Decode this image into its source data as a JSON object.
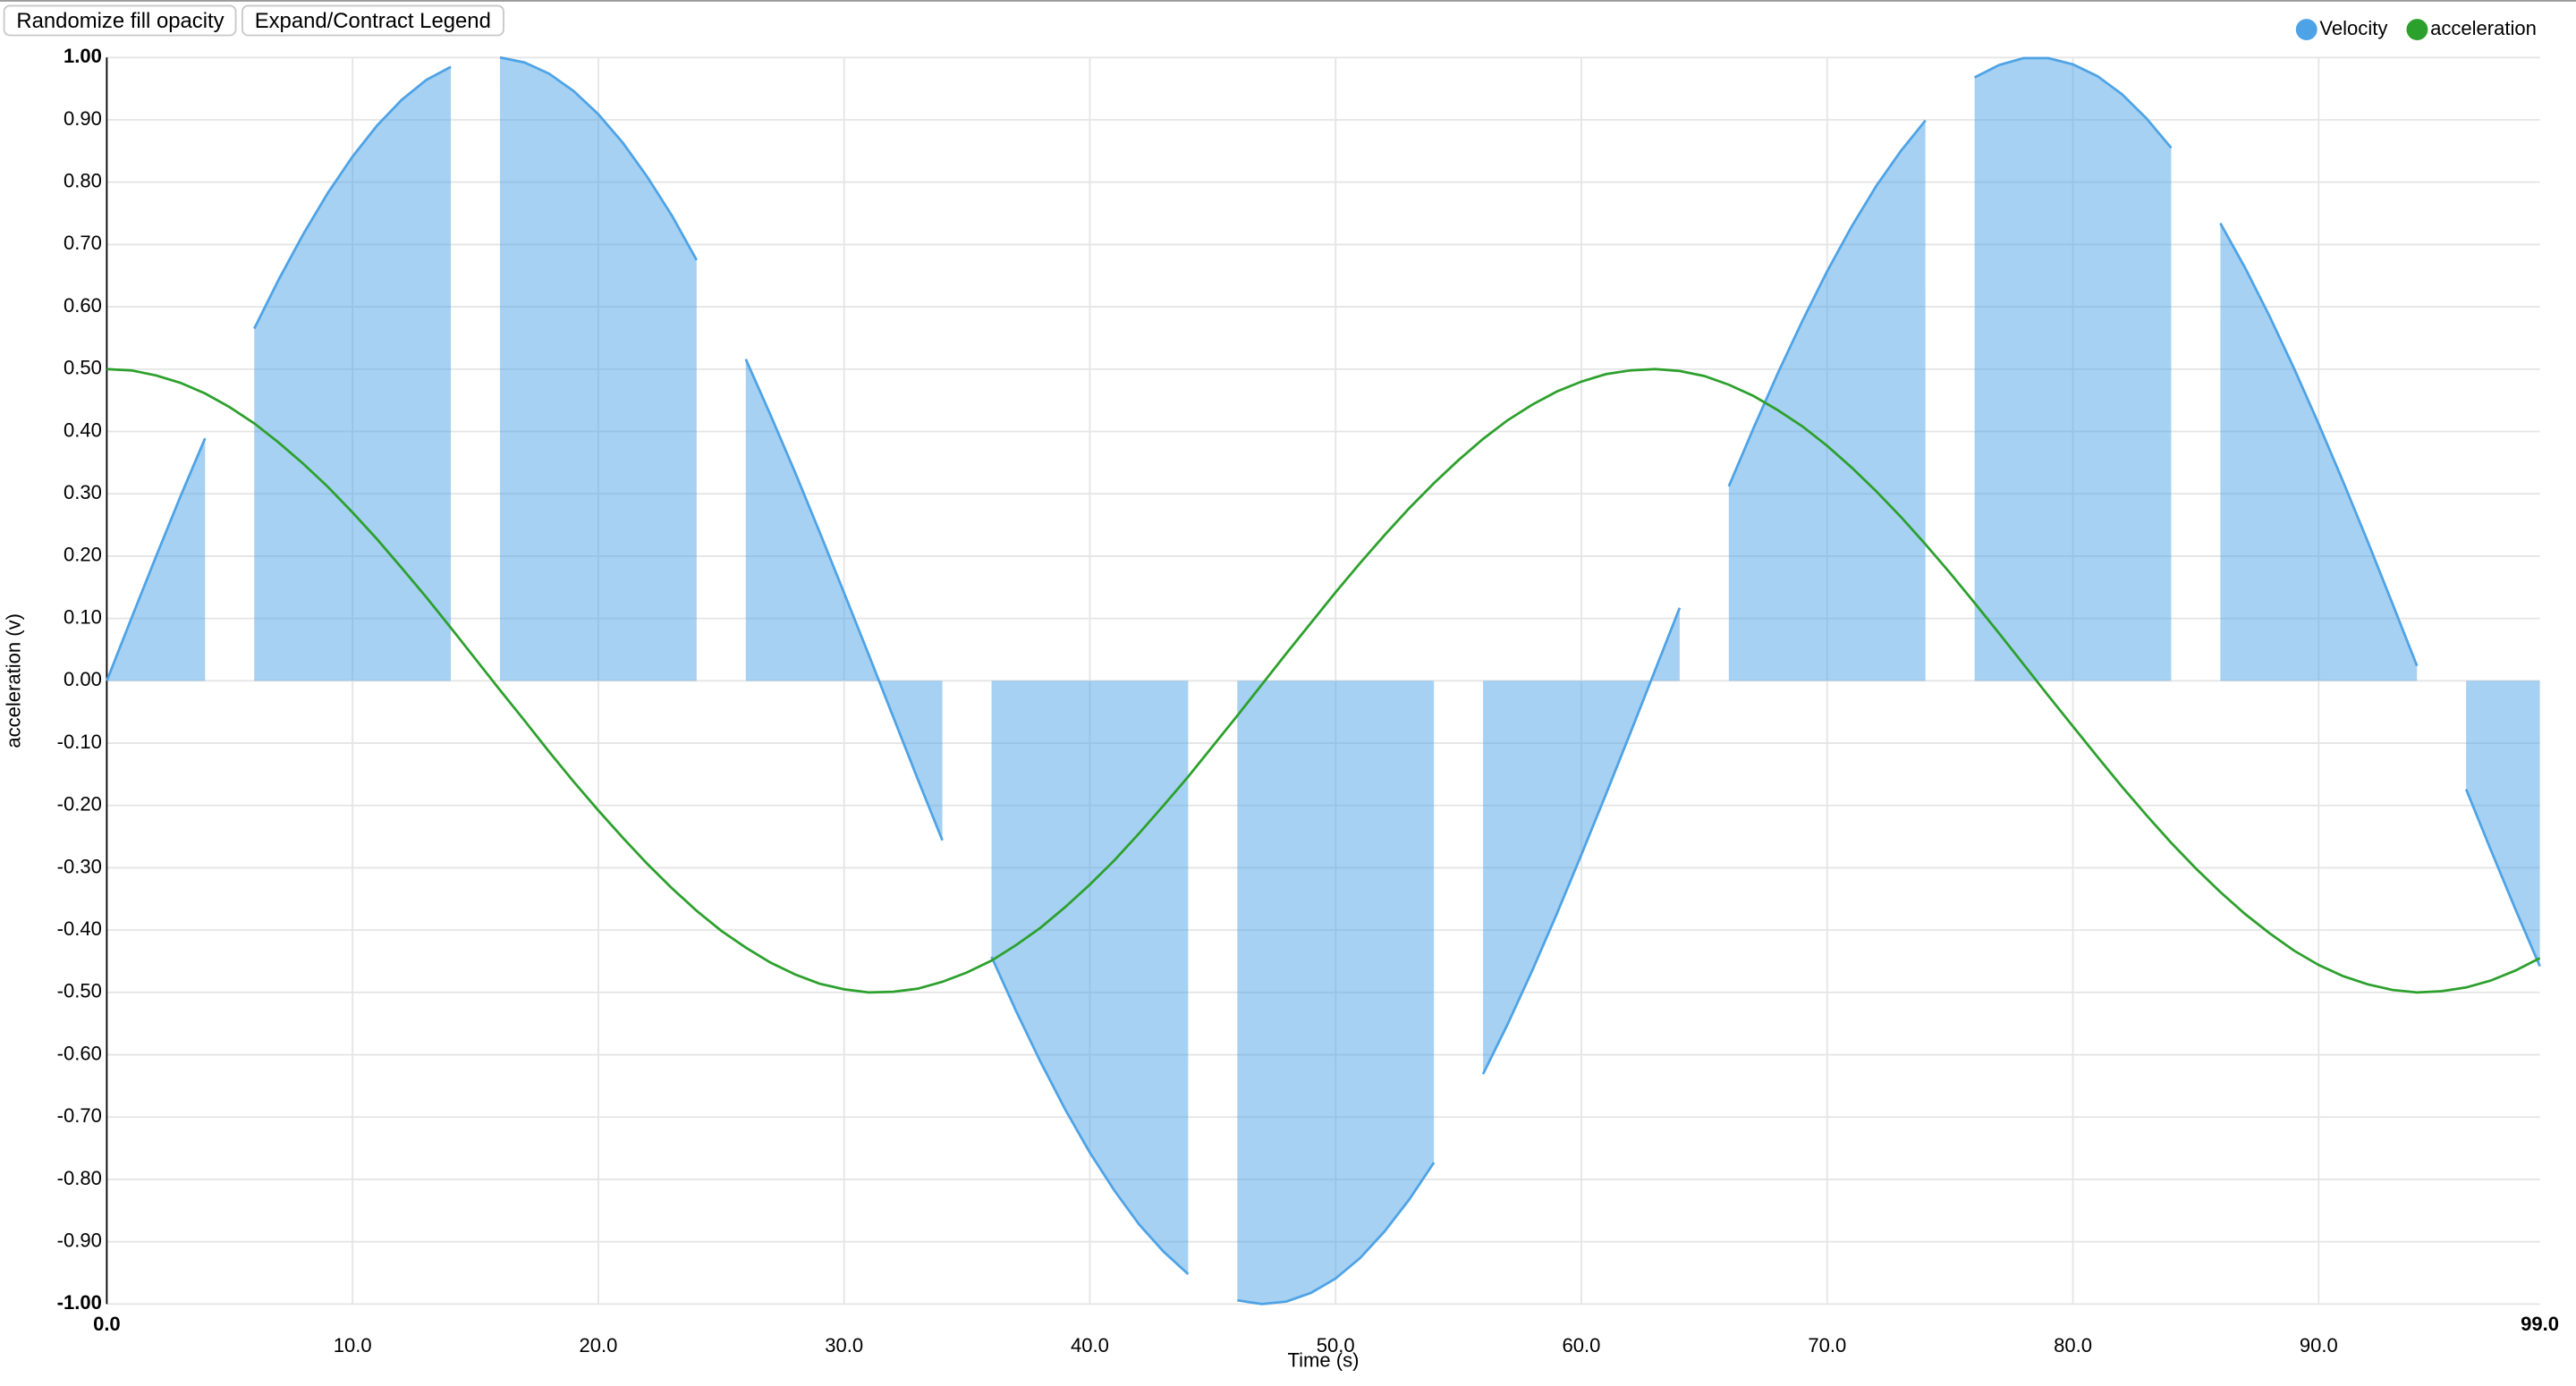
{
  "controls": {
    "buttons": [
      "Randomize fill opacity",
      "Expand/Contract Legend"
    ]
  },
  "chart_data": {
    "type": "line",
    "xlabel": "Time (s)",
    "ylabel": "acceleration (v)",
    "xlim": [
      0,
      99
    ],
    "ylim": [
      -1,
      1
    ],
    "grid": true,
    "legend": "top-right",
    "xticks": [
      {
        "value": 0,
        "label": "0.0"
      },
      {
        "value": 10,
        "label": "10.0"
      },
      {
        "value": 20,
        "label": "20.0"
      },
      {
        "value": 30,
        "label": "30.0"
      },
      {
        "value": 40,
        "label": "40.0"
      },
      {
        "value": 50,
        "label": "50.0"
      },
      {
        "value": 60,
        "label": "60.0"
      },
      {
        "value": 70,
        "label": "70.0"
      },
      {
        "value": 80,
        "label": "80.0"
      },
      {
        "value": 90,
        "label": "90.0"
      },
      {
        "value": 99,
        "label": "99.0"
      }
    ],
    "yticks": [
      {
        "value": -1,
        "label": "-1.00"
      },
      {
        "value": -0.9,
        "label": "-0.90"
      },
      {
        "value": -0.8,
        "label": "-0.80"
      },
      {
        "value": -0.7,
        "label": "-0.70"
      },
      {
        "value": -0.6,
        "label": "-0.60"
      },
      {
        "value": -0.5,
        "label": "-0.50"
      },
      {
        "value": -0.4,
        "label": "-0.40"
      },
      {
        "value": -0.3,
        "label": "-0.30"
      },
      {
        "value": -0.2,
        "label": "-0.20"
      },
      {
        "value": -0.1,
        "label": "-0.10"
      },
      {
        "value": 0,
        "label": "0.00"
      },
      {
        "value": 0.1,
        "label": "0.10"
      },
      {
        "value": 0.2,
        "label": "0.20"
      },
      {
        "value": 0.3,
        "label": "0.30"
      },
      {
        "value": 0.4,
        "label": "0.40"
      },
      {
        "value": 0.5,
        "label": "0.50"
      },
      {
        "value": 0.6,
        "label": "0.60"
      },
      {
        "value": 0.7,
        "label": "0.70"
      },
      {
        "value": 0.8,
        "label": "0.80"
      },
      {
        "value": 0.9,
        "label": "0.90"
      },
      {
        "value": 1,
        "label": "1.00"
      }
    ],
    "x": [
      0,
      1,
      2,
      3,
      4,
      5,
      6,
      7,
      8,
      9,
      10,
      11,
      12,
      13,
      14,
      15,
      16,
      17,
      18,
      19,
      20,
      21,
      22,
      23,
      24,
      25,
      26,
      27,
      28,
      29,
      30,
      31,
      32,
      33,
      34,
      35,
      36,
      37,
      38,
      39,
      40,
      41,
      42,
      43,
      44,
      45,
      46,
      47,
      48,
      49,
      50,
      51,
      52,
      53,
      54,
      55,
      56,
      57,
      58,
      59,
      60,
      61,
      62,
      63,
      64,
      65,
      66,
      67,
      68,
      69,
      70,
      71,
      72,
      73,
      74,
      75,
      76,
      77,
      78,
      79,
      80,
      81,
      82,
      83,
      84,
      85,
      86,
      87,
      88,
      89,
      90,
      91,
      92,
      93,
      94,
      95,
      96,
      97,
      98,
      99
    ],
    "series": [
      {
        "name": "Velocity",
        "color": "#4ea3e6",
        "area": true,
        "fill_opacity": 0.5,
        "values": [
          0,
          0.1,
          0.199,
          0.296,
          0.389,
          null,
          0.565,
          0.644,
          0.717,
          0.783,
          0.841,
          0.891,
          0.932,
          0.964,
          0.985,
          null,
          1,
          0.992,
          0.974,
          0.946,
          0.909,
          0.863,
          0.808,
          0.746,
          0.675,
          null,
          0.516,
          0.427,
          0.335,
          0.239,
          0.141,
          0.042,
          -0.058,
          -0.158,
          -0.256,
          null,
          -0.443,
          -0.53,
          -0.612,
          -0.688,
          -0.757,
          -0.818,
          -0.872,
          -0.916,
          -0.952,
          null,
          -0.994,
          -1,
          -0.996,
          -0.982,
          -0.959,
          -0.926,
          -0.883,
          -0.832,
          -0.773,
          null,
          -0.631,
          -0.551,
          -0.465,
          -0.374,
          -0.279,
          -0.182,
          -0.083,
          0.017,
          0.117,
          null,
          0.312,
          0.405,
          0.494,
          0.578,
          0.657,
          0.729,
          0.794,
          0.85,
          0.899,
          null,
          0.968,
          0.988,
          0.999,
          0.999,
          0.989,
          0.97,
          0.941,
          0.902,
          0.855,
          null,
          0.734,
          0.663,
          0.585,
          0.501,
          0.412,
          0.319,
          0.223,
          0.124,
          0.024,
          null,
          -0.174,
          -0.271,
          -0.366,
          -0.458
        ]
      },
      {
        "name": "acceleration",
        "color": "#2ca02c",
        "area": false,
        "values": [
          0.5,
          0.498,
          0.49,
          0.478,
          0.461,
          0.439,
          0.413,
          0.382,
          0.348,
          0.311,
          0.27,
          0.227,
          0.181,
          0.134,
          0.085,
          0.035,
          -0.015,
          -0.064,
          -0.114,
          -0.162,
          -0.208,
          -0.252,
          -0.294,
          -0.333,
          -0.369,
          -0.401,
          -0.428,
          -0.452,
          -0.471,
          -0.486,
          -0.495,
          -0.5,
          -0.499,
          -0.494,
          -0.483,
          -0.468,
          -0.449,
          -0.424,
          -0.396,
          -0.363,
          -0.327,
          -0.288,
          -0.245,
          -0.2,
          -0.154,
          -0.105,
          -0.056,
          -0.006,
          0.044,
          0.093,
          0.142,
          0.189,
          0.234,
          0.277,
          0.317,
          0.354,
          0.388,
          0.418,
          0.443,
          0.464,
          0.48,
          0.492,
          0.498,
          0.5,
          0.497,
          0.489,
          0.475,
          0.457,
          0.434,
          0.408,
          0.377,
          0.342,
          0.304,
          0.263,
          0.219,
          0.173,
          0.125,
          0.076,
          0.026,
          -0.024,
          -0.073,
          -0.122,
          -0.17,
          -0.216,
          -0.26,
          -0.301,
          -0.339,
          -0.374,
          -0.405,
          -0.433,
          -0.456,
          -0.474,
          -0.487,
          -0.496,
          -0.5,
          -0.498,
          -0.492,
          -0.481,
          -0.465,
          -0.445
        ]
      }
    ]
  }
}
